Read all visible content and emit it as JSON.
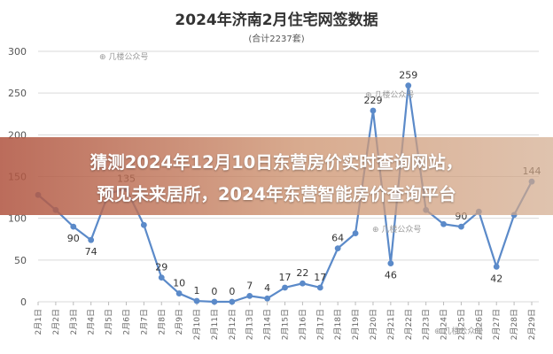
{
  "overlay": {
    "line1": "猜测2024年12月10日东营房价实时查询网站，",
    "line2": "预见未来居所，2024年东营智能房价查询平台"
  },
  "watermarks": [
    "⊕ 几楼公众号",
    "⊕ 几楼公众号",
    "⊕ 几楼公众号",
    "⊕ 几楼公众号"
  ],
  "chart_data": {
    "type": "line",
    "title": "2024年济南2月住宅网签数据",
    "subtitle": "(合计2237套)",
    "categories": [
      "2月1日",
      "2月2日",
      "2月3日",
      "2月4日",
      "2月5日",
      "2月6日",
      "2月7日",
      "2月8日",
      "2月9日",
      "2月10日",
      "2月11日",
      "2月12日",
      "2月13日",
      "2月14日",
      "2月15日",
      "2月16日",
      "2月17日",
      "2月18日",
      "2月19日",
      "2月20日",
      "2月21日",
      "2月22日",
      "2月23日",
      "2月24日",
      "2月25日",
      "2月26日",
      "2月27日",
      "2月28日",
      "2月29日"
    ],
    "series": [
      {
        "values": [
          128,
          110,
          90,
          74,
          130,
          135,
          92,
          29,
          10,
          1,
          0,
          0,
          7,
          4,
          17,
          22,
          17,
          64,
          82,
          229,
          46,
          259,
          110,
          93,
          90,
          108,
          42,
          104,
          144
        ]
      }
    ],
    "data_labels": [
      "",
      "",
      "90",
      "74",
      "",
      "135",
      "",
      "29",
      "10",
      "1",
      "0",
      "0",
      "7",
      "4",
      "17",
      "22",
      "17",
      "64",
      "",
      "229",
      "46",
      "259",
      "",
      "",
      "90",
      "",
      "42",
      "",
      "144"
    ],
    "yticks": [
      0,
      50,
      100,
      150,
      200,
      250,
      300
    ],
    "ylim": [
      0,
      300
    ],
    "grid": "horizontal",
    "line_color": "#5b8ac9",
    "label_color": "#333333"
  }
}
